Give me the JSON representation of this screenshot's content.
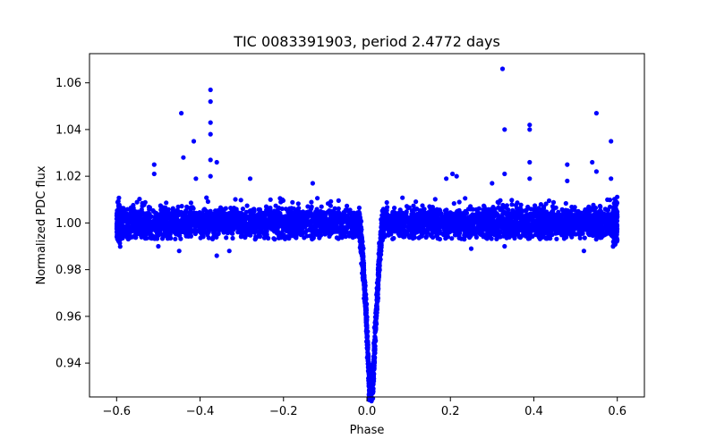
{
  "chart_data": {
    "type": "scatter",
    "title": "TIC 0083391903, period 2.4772 days",
    "xlabel": "Phase",
    "ylabel": "Normalized PDC flux",
    "xlim": [
      -0.665,
      0.665
    ],
    "ylim": [
      0.9255,
      1.0725
    ],
    "xticks": [
      -0.6,
      -0.4,
      -0.2,
      0.0,
      0.2,
      0.4,
      0.6
    ],
    "xtick_labels": [
      "−0.6",
      "−0.4",
      "−0.2",
      "0.0",
      "0.2",
      "0.4",
      "0.6"
    ],
    "yticks": [
      0.94,
      0.96,
      0.98,
      1.0,
      1.02,
      1.04,
      1.06
    ],
    "ytick_labels": [
      "0.94",
      "0.96",
      "0.98",
      "1.00",
      "1.02",
      "1.04",
      "1.06"
    ],
    "grid": false,
    "marker_color": "#0000ff",
    "baseline_flux": 1.0,
    "baseline_scatter": 0.004,
    "transit_center_phase": 0.01,
    "transit_depth_min_flux": 0.928,
    "outliers": [
      {
        "x": -0.51,
        "y": 1.025
      },
      {
        "x": -0.51,
        "y": 1.021
      },
      {
        "x": -0.445,
        "y": 1.047
      },
      {
        "x": -0.44,
        "y": 1.028
      },
      {
        "x": -0.415,
        "y": 1.035
      },
      {
        "x": -0.41,
        "y": 1.019
      },
      {
        "x": -0.375,
        "y": 1.057
      },
      {
        "x": -0.375,
        "y": 1.052
      },
      {
        "x": -0.375,
        "y": 1.043
      },
      {
        "x": -0.375,
        "y": 1.038
      },
      {
        "x": -0.375,
        "y": 1.027
      },
      {
        "x": -0.375,
        "y": 1.02
      },
      {
        "x": -0.36,
        "y": 1.026
      },
      {
        "x": -0.28,
        "y": 1.019
      },
      {
        "x": -0.13,
        "y": 1.017
      },
      {
        "x": 0.19,
        "y": 1.019
      },
      {
        "x": 0.205,
        "y": 1.021
      },
      {
        "x": 0.215,
        "y": 1.02
      },
      {
        "x": 0.3,
        "y": 1.017
      },
      {
        "x": 0.325,
        "y": 1.066
      },
      {
        "x": 0.33,
        "y": 1.04
      },
      {
        "x": 0.33,
        "y": 1.021
      },
      {
        "x": 0.39,
        "y": 1.042
      },
      {
        "x": 0.39,
        "y": 1.04
      },
      {
        "x": 0.39,
        "y": 1.026
      },
      {
        "x": 0.39,
        "y": 1.019
      },
      {
        "x": 0.48,
        "y": 1.025
      },
      {
        "x": 0.48,
        "y": 1.018
      },
      {
        "x": 0.54,
        "y": 1.026
      },
      {
        "x": 0.55,
        "y": 1.047
      },
      {
        "x": 0.55,
        "y": 1.022
      },
      {
        "x": 0.585,
        "y": 1.035
      },
      {
        "x": 0.585,
        "y": 1.019
      }
    ],
    "low_outliers": [
      {
        "x": -0.5,
        "y": 0.99
      },
      {
        "x": -0.45,
        "y": 0.988
      },
      {
        "x": -0.36,
        "y": 0.986
      },
      {
        "x": -0.33,
        "y": 0.988
      },
      {
        "x": 0.25,
        "y": 0.989
      },
      {
        "x": 0.33,
        "y": 0.99
      },
      {
        "x": 0.52,
        "y": 0.988
      },
      {
        "x": 0.59,
        "y": 0.99
      }
    ]
  }
}
